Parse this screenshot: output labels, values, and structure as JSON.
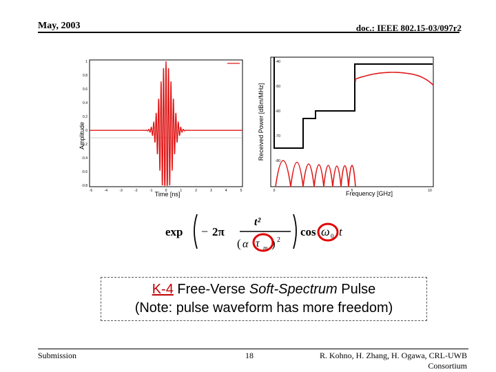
{
  "header": {
    "date": "May, 2003",
    "doc_id": "doc.: IEEE 802.15-03/097r2"
  },
  "footer": {
    "submission": "Submission",
    "page": "18",
    "authors_line1": "R. Kohno, H. Zhang, H. Ogawa, CRL-UWB",
    "authors_line2": "Consortium"
  },
  "caption": {
    "k4": "K-4",
    "part1": " Free-Verse ",
    "italic": "Soft-Spectrum",
    "part2": " Pulse",
    "line2": "(Note: pulse waveform has more freedom)"
  },
  "colors": {
    "trace": "#e01818",
    "highlight": "#e00000"
  },
  "chart_data": [
    {
      "type": "line",
      "xlabel": "Time [ns]",
      "ylabel": "Amplitude",
      "ylim": [
        -0.8,
        1
      ],
      "yticks": [
        "1",
        "0.8",
        "0.6",
        "0.4",
        "0.2",
        "0",
        "-0.2",
        "-0.4",
        "-0.6",
        "-0.8"
      ],
      "xticks": [
        "-5",
        "-4",
        "-3",
        "-2",
        "-1",
        "0",
        "1",
        "2",
        "3",
        "4",
        "5"
      ],
      "series": [
        {
          "values_description_free": true,
          "peak": 1,
          "trough": -0.8
        }
      ]
    },
    {
      "type": "line",
      "xlabel": "Frequency [GHz]",
      "ylabel": "Received Power [dBm/MHz]",
      "ylim": [
        -90,
        -40
      ],
      "yticks": [
        "-40",
        "-50",
        "-60",
        "-70",
        "-80"
      ],
      "xticks": [
        "0",
        "5",
        "10"
      ],
      "grid": false
    }
  ],
  "formula": {
    "exp": "exp",
    "two_pi": "2π",
    "t_sq": "t²",
    "alpha": "α",
    "tau": "τ",
    "tau_sub": "m",
    "denom_sq": "2",
    "cos": "cos",
    "omega": "ω",
    "omega_sub": "0",
    "t": "t"
  }
}
